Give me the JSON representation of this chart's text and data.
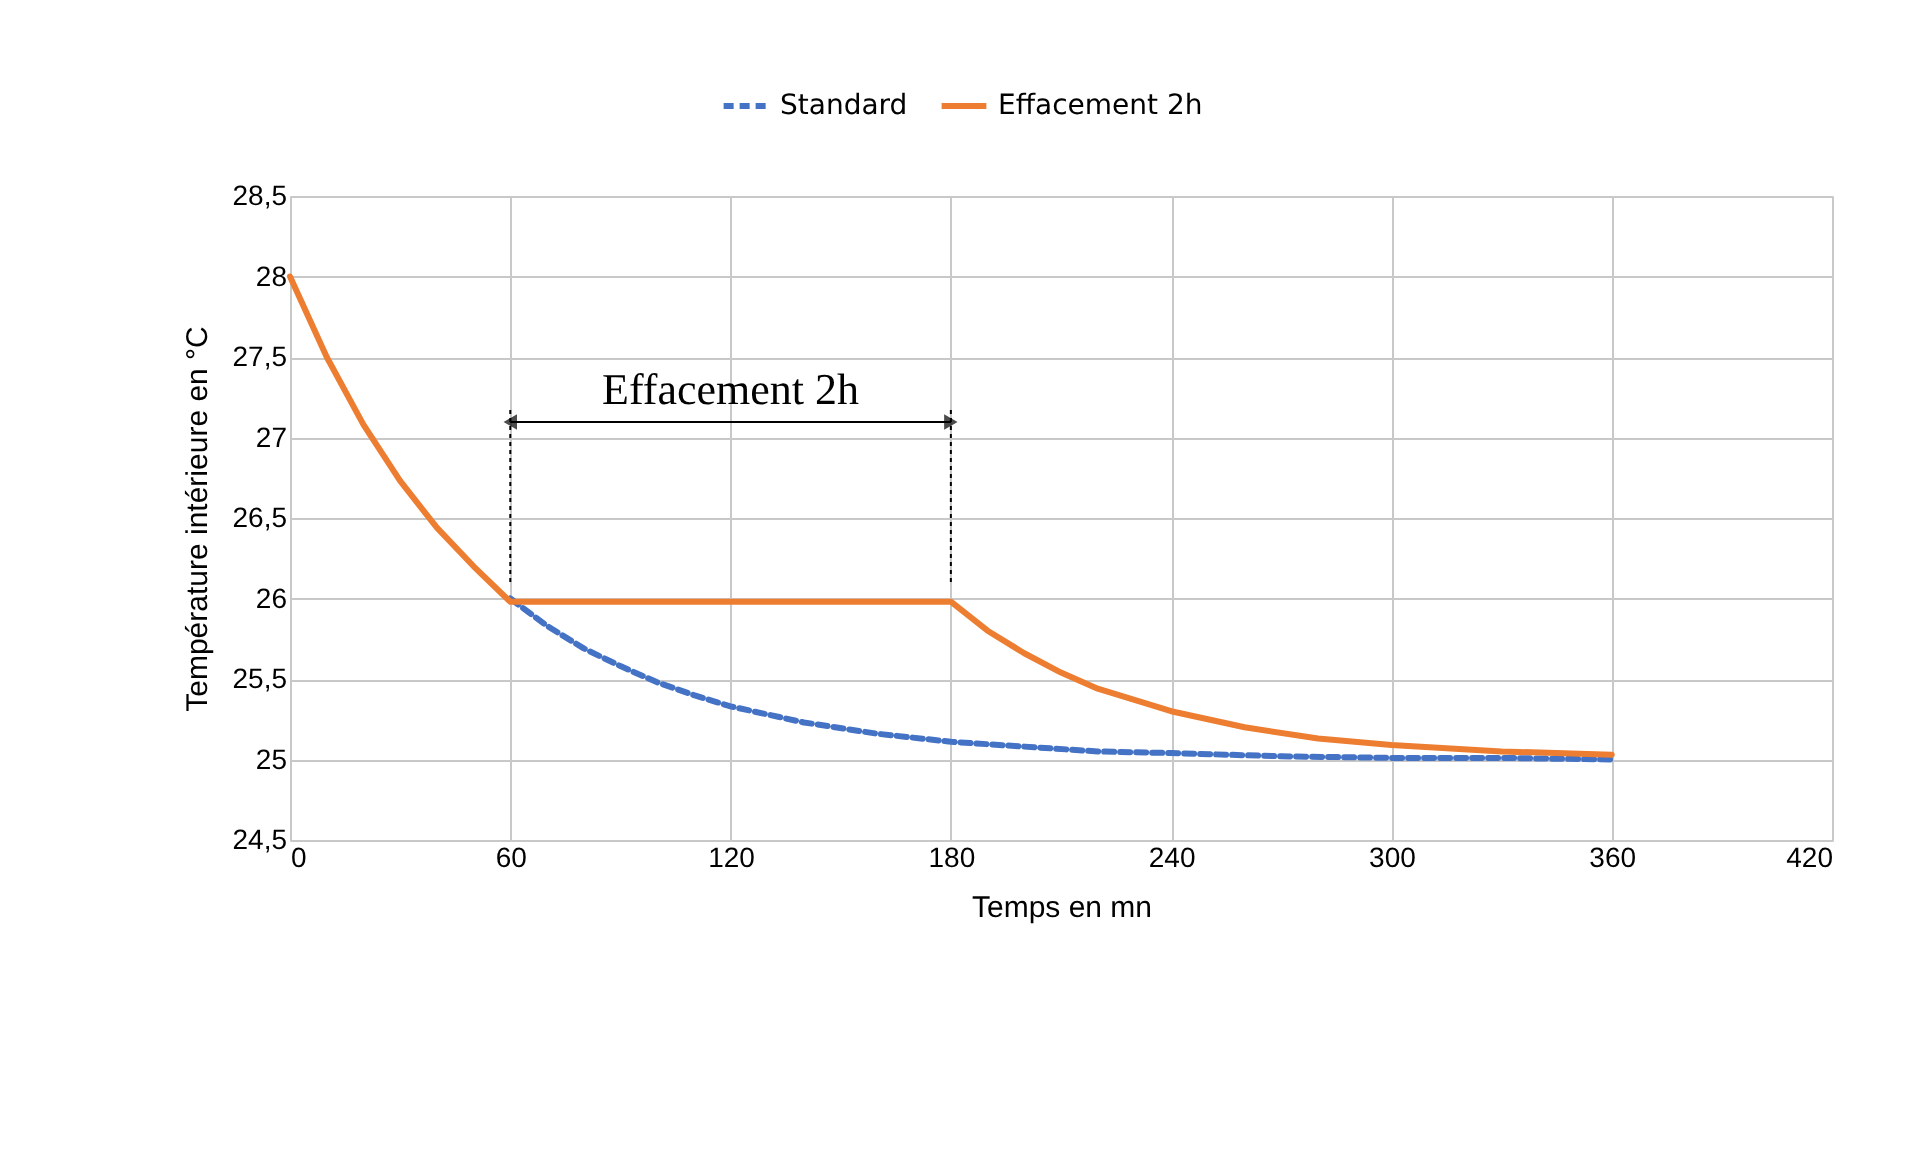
{
  "chart_data": {
    "type": "line",
    "xlabel": "Temps en mn",
    "ylabel": "Température intérieure en °C",
    "xlim": [
      0,
      420
    ],
    "xticks": [
      0,
      60,
      120,
      180,
      240,
      300,
      360,
      420
    ],
    "ylim": [
      24.5,
      28.5
    ],
    "yticks": [
      {
        "value": 24.5,
        "label": "24,5"
      },
      25,
      {
        "value": 25.5,
        "label": "25,5"
      },
      26,
      {
        "value": 26.5,
        "label": "26,5"
      },
      27,
      {
        "value": 27.5,
        "label": "27,5"
      },
      28,
      {
        "value": 28.5,
        "label": "28,5"
      }
    ],
    "grid": true,
    "legend": "top",
    "series": [
      {
        "name": "Standard",
        "color": "#4472c4",
        "line_style": "dashed",
        "x": [
          60,
          70,
          80,
          90,
          100,
          110,
          120,
          140,
          160,
          180,
          200,
          220,
          240,
          270,
          300,
          330,
          360
        ],
        "values": [
          26.0,
          25.83,
          25.69,
          25.58,
          25.48,
          25.4,
          25.33,
          25.23,
          25.16,
          25.11,
          25.08,
          25.05,
          25.04,
          25.02,
          25.01,
          25.01,
          25.0
        ]
      },
      {
        "name": "Effacement 2h",
        "color": "#ed7d31",
        "line_style": "solid",
        "x": [
          0,
          10,
          20,
          30,
          40,
          50,
          60,
          120,
          180,
          190,
          200,
          210,
          220,
          240,
          260,
          280,
          300,
          330,
          360
        ],
        "values": [
          28,
          27.5,
          27.08,
          26.73,
          26.44,
          26.2,
          25.98,
          25.98,
          25.98,
          25.8,
          25.66,
          25.54,
          25.44,
          25.3,
          25.2,
          25.13,
          25.09,
          25.05,
          25.03
        ]
      }
    ],
    "annotations": [
      "Effacement 2h"
    ]
  }
}
